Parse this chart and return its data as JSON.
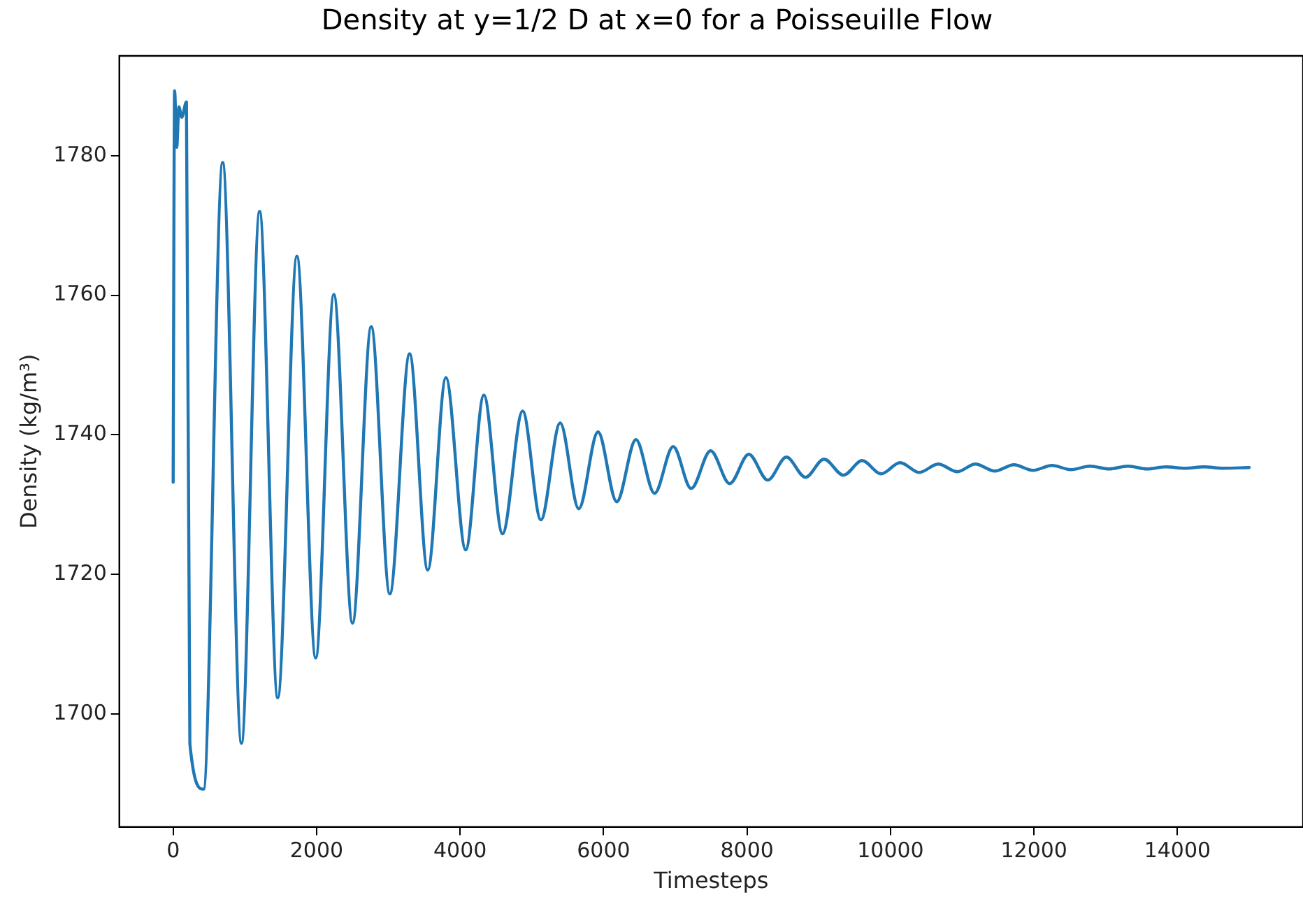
{
  "chart_data": {
    "type": "line",
    "title": "Density at y=1/2 D at x=0 for a Poisseuille Flow",
    "xlabel": "Timesteps",
    "ylabel": "Density (kg/m³)",
    "x": [
      0,
      20,
      50,
      80,
      120,
      185,
      233,
      423,
      690,
      952,
      1205,
      1458,
      1725,
      1987,
      2240,
      2500,
      2761,
      3020,
      3296,
      3549,
      3802,
      4078,
      4331,
      4591,
      4872,
      5126,
      5395,
      5654,
      5922,
      6183,
      6451,
      6710,
      6970,
      7221,
      7492,
      7758,
      8024,
      8289,
      8548,
      8814,
      9073,
      9344,
      9603,
      9869,
      10134,
      10400,
      10665,
      10931,
      11182,
      11454,
      11720,
      11985,
      12250,
      12515,
      12780,
      13045,
      13310,
      13575,
      13840,
      14105,
      14370,
      14635,
      15000
    ],
    "series": [
      {
        "color": "#1f77b4",
        "values": [
          1733.2,
          1789.3,
          1781.2,
          1787,
          1785.5,
          1787.7,
          1695.7,
          1689.2,
          1779.0,
          1695.8,
          1772.0,
          1702.3,
          1765.6,
          1708.0,
          1760.1,
          1713.0,
          1755.5,
          1717.2,
          1751.6,
          1720.6,
          1748.2,
          1723.5,
          1745.7,
          1725.8,
          1743.4,
          1727.8,
          1741.7,
          1729.4,
          1740.4,
          1730.4,
          1739.3,
          1731.6,
          1738.3,
          1732.3,
          1737.7,
          1733.0,
          1737.2,
          1733.5,
          1736.8,
          1733.9,
          1736.5,
          1734.2,
          1736.3,
          1734.4,
          1736.0,
          1734.6,
          1735.8,
          1734.7,
          1735.8,
          1734.8,
          1735.7,
          1734.9,
          1735.6,
          1735.0,
          1735.5,
          1735.1,
          1735.5,
          1735.1,
          1735.4,
          1735.2,
          1735.4,
          1735.2,
          1735.3
        ]
      }
    ],
    "xlim": [
      -750,
      15750
    ],
    "xticks": [
      0,
      2000,
      4000,
      6000,
      8000,
      10000,
      12000,
      14000
    ],
    "ylim": [
      1683.8,
      1794.3
    ],
    "yticks": [
      1700,
      1720,
      1740,
      1760,
      1780
    ],
    "grid": false,
    "legend": false,
    "marker": "none",
    "line_style": "solid"
  }
}
